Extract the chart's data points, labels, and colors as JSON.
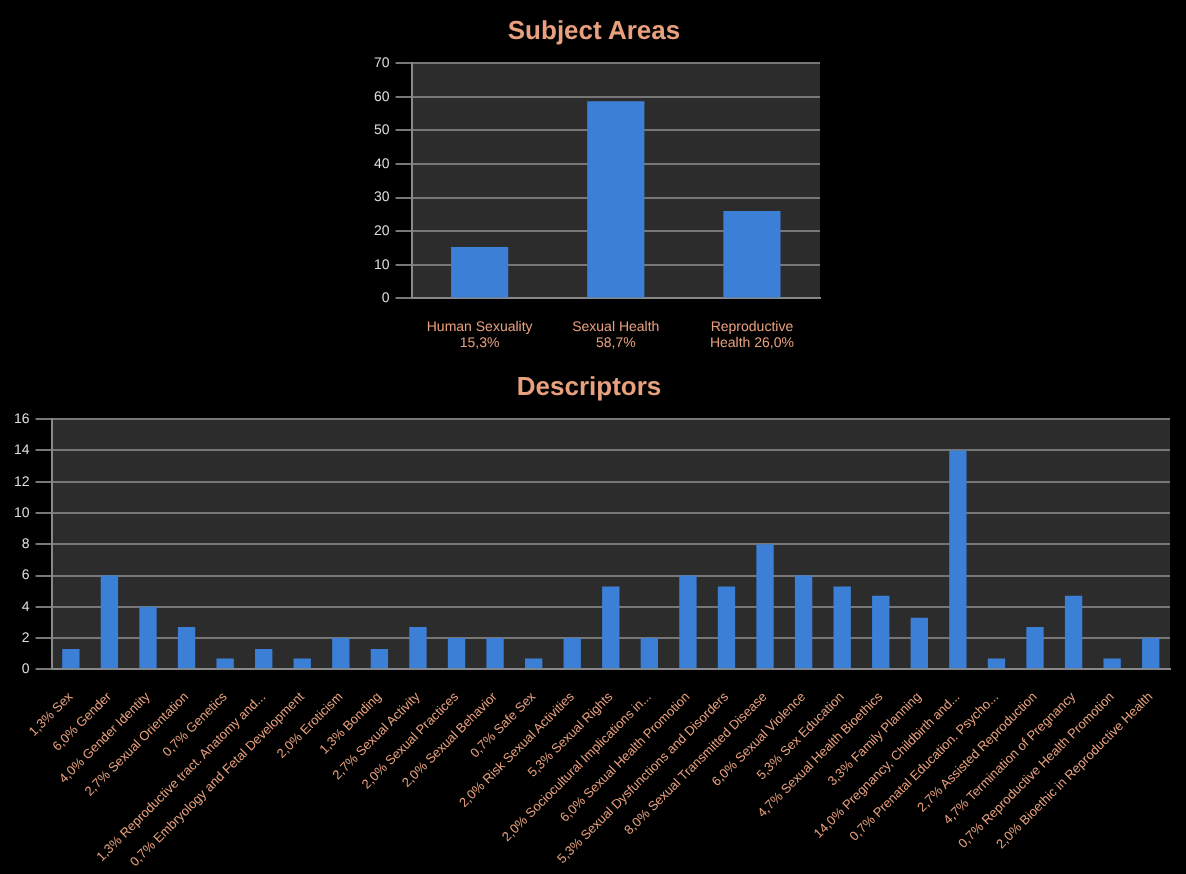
{
  "chart_data": [
    {
      "type": "bar",
      "title": "Subject Areas",
      "categories": [
        "Human Sexuality 15,3%",
        "Sexual Health 58,7%",
        "Reproductive Health 26,0%"
      ],
      "values": [
        15.3,
        58.7,
        26.0
      ],
      "color": "#3b7fd6",
      "ylim": [
        0,
        70
      ],
      "yticks": [
        0,
        10,
        20,
        30,
        40,
        50,
        60,
        70
      ],
      "grid": "y"
    },
    {
      "type": "bar",
      "title": "Descriptors",
      "categories": [
        "1,3% Sex",
        "6,0% Gender",
        "4,0% Gender Identity",
        "2,7% Sexual Orientation",
        "0,7% Genetics",
        "1,3% Reproductive tract. Anatomy and...",
        "0,7% Embryology and Fetal Development",
        "2,0% Eroticism",
        "1,3% Bonding",
        "2,7% Sexual Activity",
        "2,0% Sexual Practices",
        "2,0% Sexual Behavior",
        "0,7% Safe Sex",
        "2,0% Risk Sexual Activities",
        "5,3% Sexual Rights",
        "2,0% Sociocultural Implications in...",
        "6,0% Sexual Health Promotion",
        "5,3% Sexual Dysfunctions and Disorders",
        "8,0% Sexual Transmitted Disease",
        "6,0% Sexual Violence",
        "5,3% Sex Education",
        "4,7% Sexual Health Bioethics",
        "3,3% Family Planning",
        "14,0% Pregnancy, Childbirth and...",
        "0,7% Prenatal Education. Psycho...",
        "2,7% Assisted Reproduction",
        "4,7% Termination of Pregnancy",
        "0,7% Reproductive Health Promotion",
        "2,0% Bioethic in Reproductive Health"
      ],
      "values": [
        1.3,
        6.0,
        4.0,
        2.7,
        0.7,
        1.3,
        0.7,
        2.0,
        1.3,
        2.7,
        2.0,
        2.0,
        0.7,
        2.0,
        5.3,
        2.0,
        6.0,
        5.3,
        8.0,
        6.0,
        5.3,
        4.7,
        3.3,
        14.0,
        0.7,
        2.7,
        4.7,
        0.7,
        2.0
      ],
      "color": "#3b7fd6",
      "ylim": [
        0,
        16
      ],
      "yticks": [
        0,
        2,
        4,
        6,
        8,
        10,
        12,
        14,
        16
      ],
      "grid": "y"
    }
  ]
}
